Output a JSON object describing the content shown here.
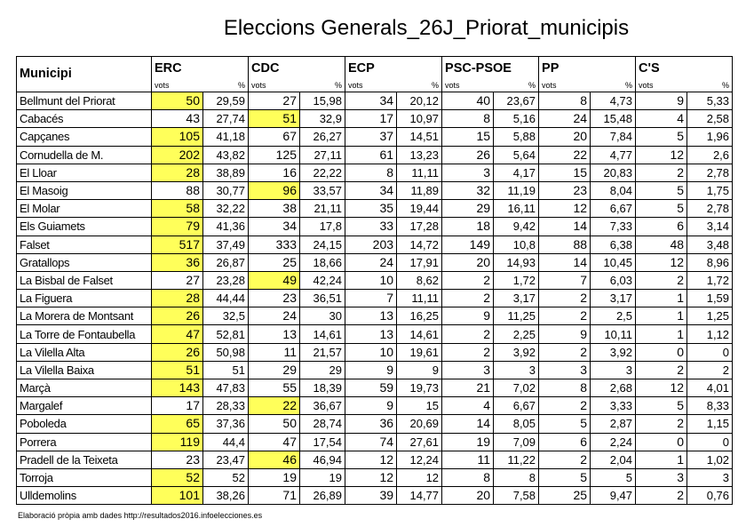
{
  "title": "Eleccions Generals_26J_Priorat_municipis",
  "table": {
    "columns": [
      "Municipi",
      "ERC",
      "CDC",
      "ECP",
      "PSC-PSOE",
      "PP",
      "C'S"
    ],
    "subheader": {
      "votes": "vots",
      "percent": "%"
    },
    "rows": [
      [
        "Bellmunt del Priorat",
        "50",
        "29,59",
        "27",
        "15,98",
        "34",
        "20,12",
        "40",
        "23,67",
        "8",
        "4,73",
        "9",
        "5,33"
      ],
      [
        "Cabacés",
        "43",
        "27,74",
        "51",
        "32,9",
        "17",
        "10,97",
        "8",
        "5,16",
        "24",
        "15,48",
        "4",
        "2,58"
      ],
      [
        "Capçanes",
        "105",
        "41,18",
        "67",
        "26,27",
        "37",
        "14,51",
        "15",
        "5,88",
        "20",
        "7,84",
        "5",
        "1,96"
      ],
      [
        "Cornudella de M.",
        "202",
        "43,82",
        "125",
        "27,11",
        "61",
        "13,23",
        "26",
        "5,64",
        "22",
        "4,77",
        "12",
        "2,6"
      ],
      [
        "El Lloar",
        "28",
        "38,89",
        "16",
        "22,22",
        "8",
        "11,11",
        "3",
        "4,17",
        "15",
        "20,83",
        "2",
        "2,78"
      ],
      [
        "El Masoig",
        "88",
        "30,77",
        "96",
        "33,57",
        "34",
        "11,89",
        "32",
        "11,19",
        "23",
        "8,04",
        "5",
        "1,75"
      ],
      [
        "El Molar",
        "58",
        "32,22",
        "38",
        "21,11",
        "35",
        "19,44",
        "29",
        "16,11",
        "12",
        "6,67",
        "5",
        "2,78"
      ],
      [
        "Els Guiamets",
        "79",
        "41,36",
        "34",
        "17,8",
        "33",
        "17,28",
        "18",
        "9,42",
        "14",
        "7,33",
        "6",
        "3,14"
      ],
      [
        "Falset",
        "517",
        "37,49",
        "333",
        "24,15",
        "203",
        "14,72",
        "149",
        "10,8",
        "88",
        "6,38",
        "48",
        "3,48"
      ],
      [
        "Gratallops",
        "36",
        "26,87",
        "25",
        "18,66",
        "24",
        "17,91",
        "20",
        "14,93",
        "14",
        "10,45",
        "12",
        "8,96"
      ],
      [
        "La Bisbal de Falset",
        "27",
        "23,28",
        "49",
        "42,24",
        "10",
        "8,62",
        "2",
        "1,72",
        "7",
        "6,03",
        "2",
        "1,72"
      ],
      [
        "La Figuera",
        "28",
        "44,44",
        "23",
        "36,51",
        "7",
        "11,11",
        "2",
        "3,17",
        "2",
        "3,17",
        "1",
        "1,59"
      ],
      [
        "La Morera de Montsant",
        "26",
        "32,5",
        "24",
        "30",
        "13",
        "16,25",
        "9",
        "11,25",
        "2",
        "2,5",
        "1",
        "1,25"
      ],
      [
        "La Torre de Fontaubella",
        "47",
        "52,81",
        "13",
        "14,61",
        "13",
        "14,61",
        "2",
        "2,25",
        "9",
        "10,11",
        "1",
        "1,12"
      ],
      [
        "La Vilella Alta",
        "26",
        "50,98",
        "11",
        "21,57",
        "10",
        "19,61",
        "2",
        "3,92",
        "2",
        "3,92",
        "0",
        "0"
      ],
      [
        "La Vilella Baixa",
        "51",
        "51",
        "29",
        "29",
        "9",
        "9",
        "3",
        "3",
        "3",
        "3",
        "2",
        "2"
      ],
      [
        "Marçà",
        "143",
        "47,83",
        "55",
        "18,39",
        "59",
        "19,73",
        "21",
        "7,02",
        "8",
        "2,68",
        "12",
        "4,01"
      ],
      [
        "Margalef",
        "17",
        "28,33",
        "22",
        "36,67",
        "9",
        "15",
        "4",
        "6,67",
        "2",
        "3,33",
        "5",
        "8,33"
      ],
      [
        "Poboleda",
        "65",
        "37,36",
        "50",
        "28,74",
        "36",
        "20,69",
        "14",
        "8,05",
        "5",
        "2,87",
        "2",
        "1,15"
      ],
      [
        "Porrera",
        "119",
        "44,4",
        "47",
        "17,54",
        "74",
        "27,61",
        "19",
        "7,09",
        "6",
        "2,24",
        "0",
        "0"
      ],
      [
        "Pradell de la Teixeta",
        "23",
        "23,47",
        "46",
        "46,94",
        "12",
        "12,24",
        "11",
        "11,22",
        "2",
        "2,04",
        "1",
        "1,02"
      ],
      [
        "Torroja",
        "52",
        "52",
        "19",
        "19",
        "12",
        "12",
        "8",
        "8",
        "5",
        "5",
        "3",
        "3"
      ],
      [
        "Ulldemolins",
        "101",
        "38,26",
        "71",
        "26,89",
        "39",
        "14,77",
        "20",
        "7,58",
        "25",
        "9,47",
        "2",
        "0,76"
      ]
    ]
  },
  "footer": "Elaboració pròpia amb dades http://resultados2016.infoelecciones.es"
}
